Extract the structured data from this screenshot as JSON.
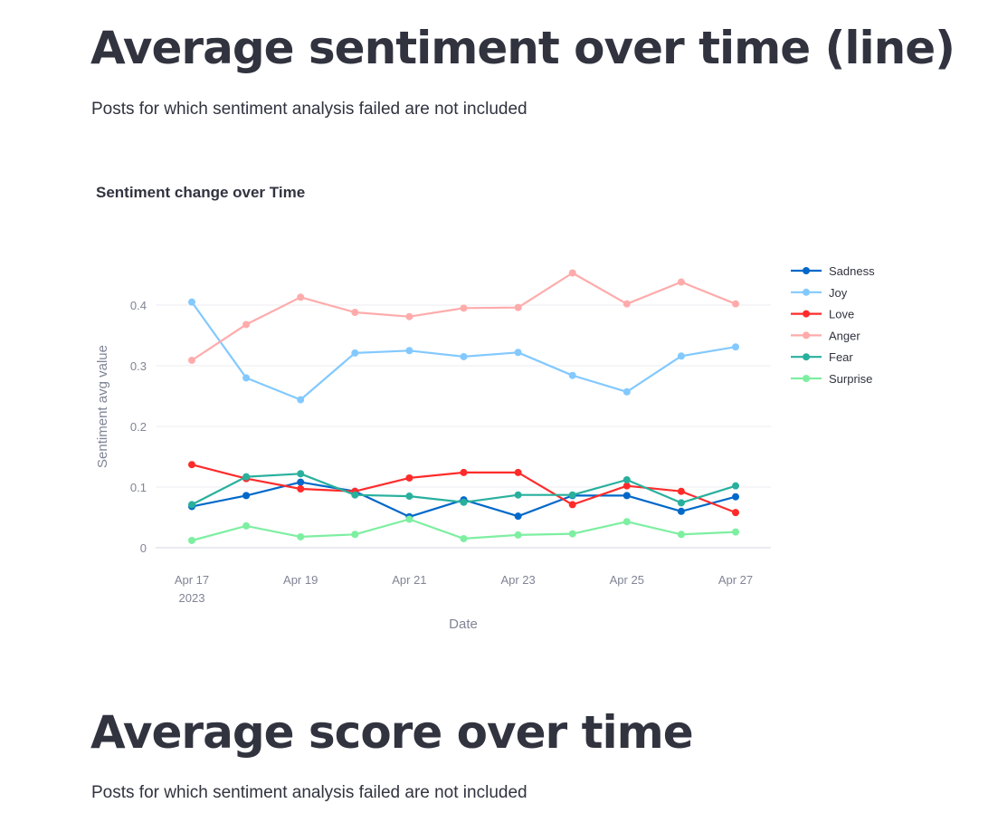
{
  "section1": {
    "title": "Average sentiment over time (line)",
    "caption": "Posts for which sentiment analysis failed are not included"
  },
  "section2": {
    "title": "Average score over time",
    "caption": "Posts for which sentiment analysis failed are not included"
  },
  "chart_data": {
    "type": "line",
    "title": "Sentiment change over Time",
    "xlabel": "Date",
    "ylabel": "Sentiment avg value",
    "x": [
      "2023-04-17",
      "2023-04-18",
      "2023-04-19",
      "2023-04-20",
      "2023-04-21",
      "2023-04-22",
      "2023-04-23",
      "2023-04-24",
      "2023-04-25",
      "2023-04-26",
      "2023-04-27"
    ],
    "x_tick_labels": [
      {
        "date": "2023-04-17",
        "label": "Apr 17",
        "sub": "2023"
      },
      {
        "date": "2023-04-19",
        "label": "Apr 19"
      },
      {
        "date": "2023-04-21",
        "label": "Apr 21"
      },
      {
        "date": "2023-04-23",
        "label": "Apr 23"
      },
      {
        "date": "2023-04-25",
        "label": "Apr 25"
      },
      {
        "date": "2023-04-27",
        "label": "Apr 27"
      }
    ],
    "y_ticks": [
      0,
      0.1,
      0.2,
      0.3,
      0.4
    ],
    "y_tick_labels": [
      "0",
      "0.1",
      "0.2",
      "0.3",
      "0.4"
    ],
    "ylim": [
      0,
      0.45
    ],
    "grid": true,
    "legend_position": "right",
    "series": [
      {
        "name": "Sadness",
        "color": "#0068c9",
        "values": [
          0.068,
          0.086,
          0.108,
          0.093,
          0.051,
          0.079,
          0.052,
          0.086,
          0.086,
          0.06,
          0.084
        ]
      },
      {
        "name": "Joy",
        "color": "#83c9ff",
        "values": [
          0.405,
          0.28,
          0.244,
          0.321,
          0.325,
          0.315,
          0.322,
          0.284,
          0.257,
          0.316,
          0.331
        ]
      },
      {
        "name": "Love",
        "color": "#ff2b2b",
        "values": [
          0.137,
          0.114,
          0.097,
          0.093,
          0.115,
          0.124,
          0.124,
          0.071,
          0.102,
          0.093,
          0.058
        ]
      },
      {
        "name": "Anger",
        "color": "#ffabab",
        "values": [
          0.309,
          0.368,
          0.413,
          0.388,
          0.381,
          0.395,
          0.396,
          0.453,
          0.402,
          0.438,
          0.402
        ]
      },
      {
        "name": "Fear",
        "color": "#29b09d",
        "values": [
          0.071,
          0.117,
          0.122,
          0.087,
          0.085,
          0.075,
          0.087,
          0.087,
          0.112,
          0.074,
          0.102
        ]
      },
      {
        "name": "Surprise",
        "color": "#7defa1",
        "values": [
          0.012,
          0.036,
          0.018,
          0.022,
          0.047,
          0.015,
          0.021,
          0.023,
          0.043,
          0.022,
          0.026
        ]
      }
    ]
  }
}
